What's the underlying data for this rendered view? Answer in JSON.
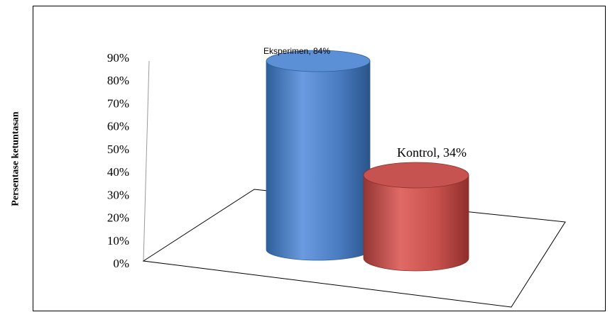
{
  "chart_data": {
    "type": "bar",
    "style": "3d-cylinder",
    "ylabel": "Persentase ketuntasan",
    "yticks": [
      "0%",
      "10%",
      "20%",
      "30%",
      "40%",
      "50%",
      "60%",
      "70%",
      "80%",
      "90%"
    ],
    "ylim": [
      0,
      90
    ],
    "categories": [
      "Eksperimen",
      "Kontrol"
    ],
    "values": [
      84,
      34
    ],
    "data_labels": [
      "Eksperimen, 84%",
      "Kontrol, 34%"
    ],
    "colors": [
      "#4f81bd",
      "#c0504d"
    ],
    "grid": false,
    "legend": "none"
  }
}
